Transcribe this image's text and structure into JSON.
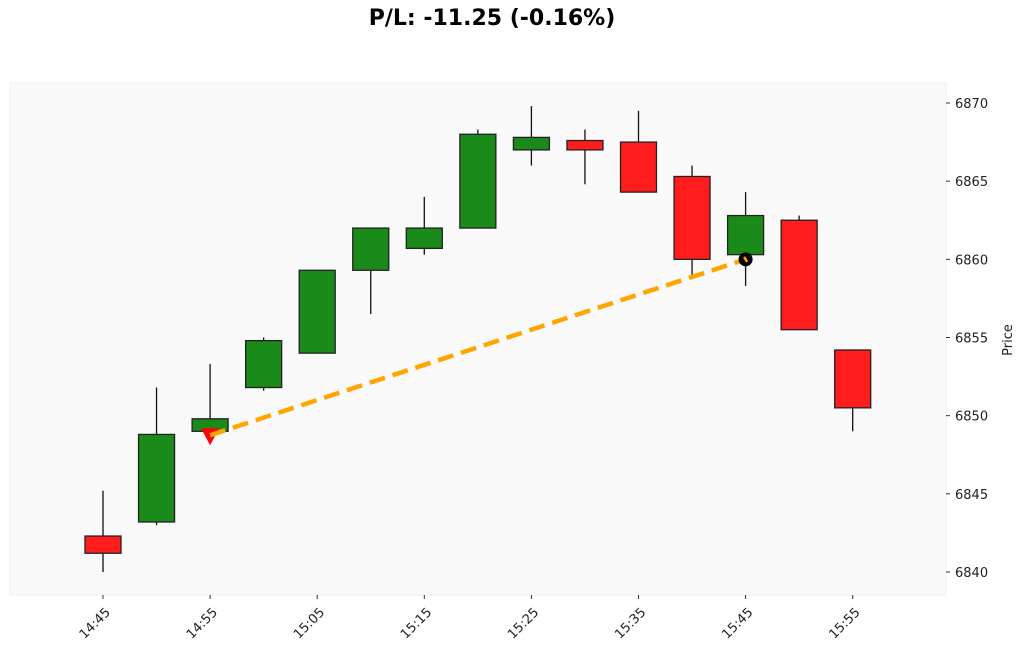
{
  "title": "P/L: -11.25 (-0.16%)",
  "chart_data": {
    "type": "candlestick",
    "title": "P/L: -11.25 (-0.16%)",
    "xlabel": "",
    "ylabel": "Price",
    "ylim": [
      6838.5,
      6871.3
    ],
    "yticks": [
      6840,
      6845,
      6850,
      6855,
      6860,
      6865,
      6870
    ],
    "xticks": [
      "14:45",
      "14:55",
      "15:05",
      "15:15",
      "15:25",
      "15:35",
      "15:45",
      "15:55"
    ],
    "grid": false,
    "background": "#f9f9f9",
    "colors": {
      "up": "#1a8a1a",
      "down": "#ff1c1c",
      "edge": "#222222",
      "trade_line": "#ffa500",
      "entry_marker": "#ff0000",
      "exit_marker": "#000000"
    },
    "candles": [
      {
        "time": "14:45",
        "open": 6842.3,
        "high": 6845.2,
        "low": 6840.0,
        "close": 6841.2
      },
      {
        "time": "14:50",
        "open": 6843.2,
        "high": 6851.8,
        "low": 6843.0,
        "close": 6848.8
      },
      {
        "time": "14:55",
        "open": 6849.0,
        "high": 6853.3,
        "low": 6849.0,
        "close": 6849.8
      },
      {
        "time": "15:00",
        "open": 6851.8,
        "high": 6855.0,
        "low": 6851.6,
        "close": 6854.8
      },
      {
        "time": "15:05",
        "open": 6854.0,
        "high": 6859.3,
        "low": 6854.0,
        "close": 6859.3
      },
      {
        "time": "15:10",
        "open": 6859.3,
        "high": 6862.0,
        "low": 6856.5,
        "close": 6862.0
      },
      {
        "time": "15:15",
        "open": 6860.7,
        "high": 6864.0,
        "low": 6860.3,
        "close": 6862.0
      },
      {
        "time": "15:20",
        "open": 6862.0,
        "high": 6868.3,
        "low": 6862.0,
        "close": 6868.0
      },
      {
        "time": "15:25",
        "open": 6867.0,
        "high": 6869.8,
        "low": 6866.0,
        "close": 6867.8
      },
      {
        "time": "15:30",
        "open": 6867.6,
        "high": 6868.3,
        "low": 6864.8,
        "close": 6867.0
      },
      {
        "time": "15:35",
        "open": 6867.5,
        "high": 6869.5,
        "low": 6864.3,
        "close": 6864.3
      },
      {
        "time": "15:40",
        "open": 6865.3,
        "high": 6866.0,
        "low": 6859.0,
        "close": 6860.0
      },
      {
        "time": "15:45",
        "open": 6860.3,
        "high": 6864.3,
        "low": 6858.3,
        "close": 6862.8
      },
      {
        "time": "15:50",
        "open": 6862.5,
        "high": 6862.8,
        "low": 6855.5,
        "close": 6855.5
      },
      {
        "time": "15:55",
        "open": 6854.2,
        "high": 6854.2,
        "low": 6849.0,
        "close": 6850.5
      }
    ],
    "trade": {
      "entry": {
        "time": "14:55",
        "price": 6848.75,
        "marker": "triangle-down"
      },
      "exit": {
        "time": "15:45",
        "price": 6860.0,
        "marker": "circle"
      },
      "line_style": "dashed"
    }
  }
}
